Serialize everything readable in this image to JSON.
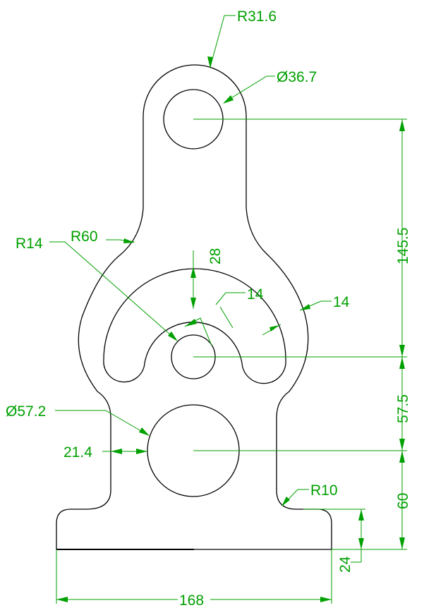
{
  "drawing": {
    "colors": {
      "outline": "#000000",
      "dimension": "#00a000",
      "background": "#ffffff"
    },
    "dimensions": {
      "top_radius": "R31.6",
      "top_hole_diameter": "Ø36.7",
      "center_to_top_hole": "145.5",
      "small_radius": "R14",
      "neck_radius": "R60",
      "slot_depth": "28",
      "inner_slot_width": "14",
      "outer_slot_width": "14",
      "big_hole_diameter": "Ø57.2",
      "big_hole_offset": "57.5",
      "wall_width": "21.4",
      "base_to_big_hole": "60",
      "fillet_radius": "R10",
      "base_height": "24",
      "base_width": "168"
    }
  }
}
